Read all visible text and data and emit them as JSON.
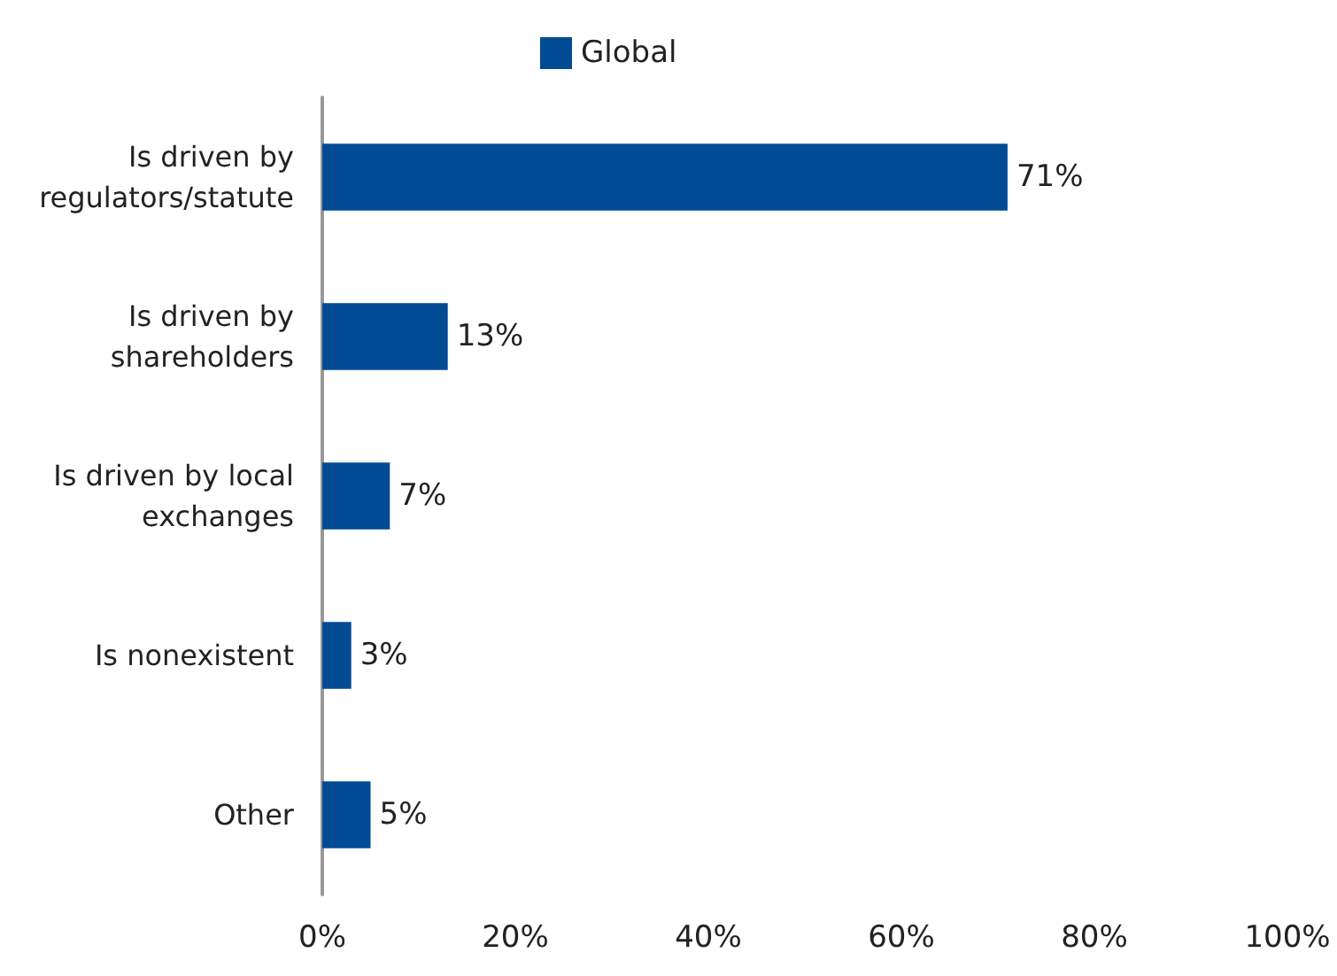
{
  "chart_data": {
    "type": "bar",
    "orientation": "horizontal",
    "categories": [
      "Is driven by\nregulators/statute",
      "Is driven by\nshareholders",
      "Is driven by local\nexchanges",
      "Is nonexistent",
      "Other"
    ],
    "series": [
      {
        "name": "Global",
        "color": "#004b93",
        "values": [
          71,
          13,
          7,
          3,
          5
        ],
        "value_labels": [
          "71%",
          "13%",
          "7%",
          "3%",
          "5%"
        ]
      }
    ],
    "xlim": [
      0,
      100
    ],
    "xticks": [
      {
        "value": 0,
        "label": "0%"
      },
      {
        "value": 20,
        "label": "20%"
      },
      {
        "value": 40,
        "label": "40%"
      },
      {
        "value": 60,
        "label": "60%"
      },
      {
        "value": 80,
        "label": "80%"
      },
      {
        "value": 100,
        "label": "100%"
      }
    ],
    "grid": false,
    "legend": "top"
  }
}
